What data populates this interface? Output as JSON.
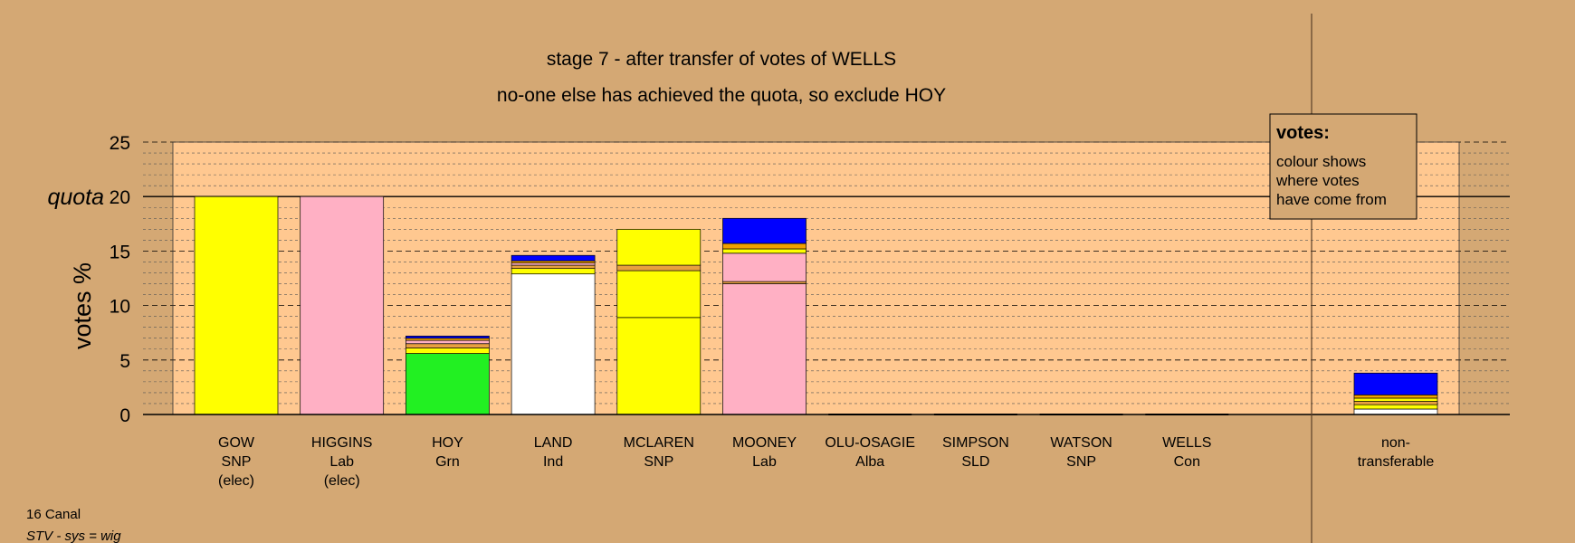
{
  "chart_data": {
    "type": "bar",
    "title": "stage 7 - after transfer of votes of WELLS",
    "subtitle": "no-one else has achieved the quota, so exclude HOY",
    "ylabel": "votes %",
    "ylim": [
      0,
      25
    ],
    "yticks": [
      0,
      5,
      10,
      15,
      20,
      25
    ],
    "quota": 20,
    "quota_label": "quota",
    "categories": [
      {
        "name": "GOW",
        "party": "SNP",
        "status": "(elec)"
      },
      {
        "name": "HIGGINS",
        "party": "Lab",
        "status": "(elec)"
      },
      {
        "name": "HOY",
        "party": "Grn",
        "status": ""
      },
      {
        "name": "LAND",
        "party": "Ind",
        "status": ""
      },
      {
        "name": "MCLAREN",
        "party": "SNP",
        "status": ""
      },
      {
        "name": "MOONEY",
        "party": "Lab",
        "status": ""
      },
      {
        "name": "OLU-OSAGIE",
        "party": "Alba",
        "status": ""
      },
      {
        "name": "SIMPSON",
        "party": "SLD",
        "status": ""
      },
      {
        "name": "WATSON",
        "party": "SNP",
        "status": ""
      },
      {
        "name": "WELLS",
        "party": "Con",
        "status": ""
      }
    ],
    "series": [
      {
        "values": [
          20,
          20,
          7.2,
          14.4,
          17.0,
          18.0,
          0,
          0,
          0,
          0
        ]
      }
    ],
    "segments": [
      [
        {
          "from": "SNP",
          "value": 20,
          "color": "#FFFF00"
        }
      ],
      [
        {
          "from": "Lab",
          "value": 20,
          "color": "#FFB0C4"
        }
      ],
      [
        {
          "from": "Grn",
          "value": 5.6,
          "color": "#22F022"
        },
        {
          "from": "SNP",
          "value": 0.5,
          "color": "#FFFF00"
        },
        {
          "from": "Alba",
          "value": 0.4,
          "color": "#E8A040"
        },
        {
          "from": "Lab",
          "value": 0.3,
          "color": "#FFB0C4"
        },
        {
          "from": "SLD",
          "value": 0.2,
          "color": "#F0A000"
        },
        {
          "from": "Con",
          "value": 0.2,
          "color": "#0000FF"
        }
      ],
      [
        {
          "from": "Ind",
          "value": 12.9,
          "color": "#FFFFFF"
        },
        {
          "from": "SNP",
          "value": 0.5,
          "color": "#FFFF00"
        },
        {
          "from": "Alba",
          "value": 0.3,
          "color": "#E8A040"
        },
        {
          "from": "Lab",
          "value": 0.2,
          "color": "#FFB0C4"
        },
        {
          "from": "SLD",
          "value": 0.2,
          "color": "#F0A000"
        },
        {
          "from": "Con",
          "value": 0.5,
          "color": "#0000FF"
        }
      ],
      [
        {
          "from": "SNP",
          "value": 8.9,
          "color": "#FFFF00"
        },
        {
          "from": "SNP",
          "value": 4.3,
          "color": "#FFFF00"
        },
        {
          "from": "Alba",
          "value": 0.5,
          "color": "#E8A040"
        },
        {
          "from": "SNP",
          "value": 3.3,
          "color": "#FFFF00"
        }
      ],
      [
        {
          "from": "Lab",
          "value": 12.0,
          "color": "#FFB0C4"
        },
        {
          "from": "Alba",
          "value": 0.2,
          "color": "#E8A040"
        },
        {
          "from": "Lab",
          "value": 2.6,
          "color": "#FFB0C4"
        },
        {
          "from": "SNP",
          "value": 0.4,
          "color": "#FFFF00"
        },
        {
          "from": "SLD",
          "value": 0.5,
          "color": "#F0A000"
        },
        {
          "from": "Con",
          "value": 2.3,
          "color": "#0000FF"
        }
      ],
      [],
      [],
      [],
      []
    ],
    "nontransferable": {
      "label_lines": [
        "non-",
        "transferable"
      ],
      "segments": [
        {
          "from": "Ind",
          "value": 0.5,
          "color": "#FFFFFF"
        },
        {
          "from": "SNP",
          "value": 0.4,
          "color": "#FFFF00"
        },
        {
          "from": "Alba",
          "value": 0.3,
          "color": "#E8A040"
        },
        {
          "from": "SNP",
          "value": 0.3,
          "color": "#FFFF00"
        },
        {
          "from": "SLD",
          "value": 0.3,
          "color": "#F0A000"
        },
        {
          "from": "Con",
          "value": 2.0,
          "color": "#0000FF"
        }
      ]
    },
    "legend": {
      "heading": "votes:",
      "lines": [
        "colour shows",
        "where votes",
        "have come from"
      ],
      "placement": "top-right"
    },
    "grid": true
  },
  "footer": {
    "line1": "16 Canal",
    "line2": "STV - sys = wig"
  },
  "colors": {
    "background": "#D4A874",
    "plot": "#FFC890"
  }
}
